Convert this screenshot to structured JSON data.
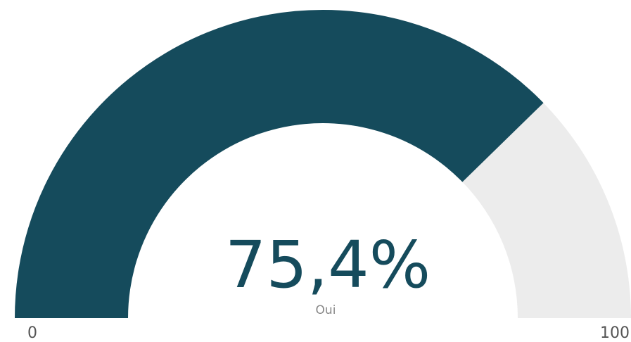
{
  "chart_data": {
    "type": "gauge",
    "value": 75.4,
    "value_label": "75,4%",
    "label": "Oui",
    "min": 0,
    "max": 100,
    "color": "#154b5c",
    "track_color": "#ececec"
  }
}
